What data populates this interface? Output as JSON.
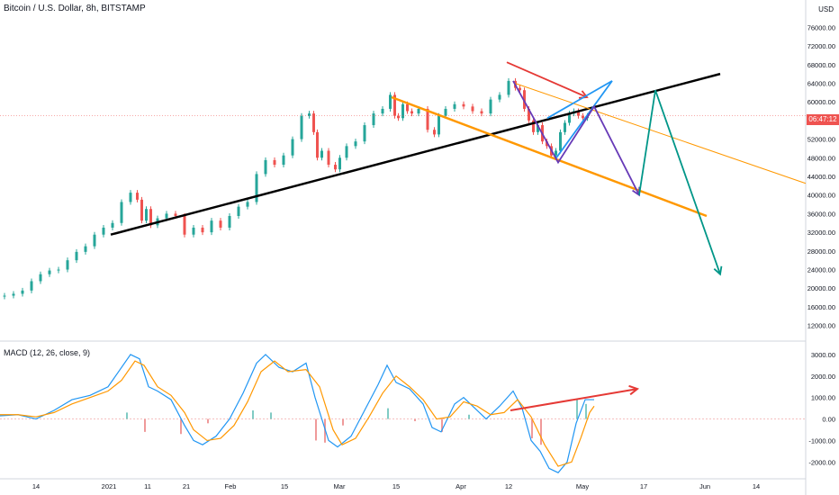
{
  "header": {
    "title": "Bitcoin / U.S. Dollar, 8h, BITSTAMP",
    "currency": "USD",
    "price_tag": "06:47:12"
  },
  "macd_header": {
    "label": "MACD (12, 26, close, 9)"
  },
  "chart_data": [
    {
      "type": "line",
      "title": "Bitcoin / U.S. Dollar, 8h, BITSTAMP",
      "xlabel": "",
      "ylabel": "USD",
      "x_ticks": [
        "14",
        "2021",
        "11",
        "21",
        "Feb",
        "15",
        "Mar",
        "15",
        "Apr",
        "12",
        "May",
        "17",
        "Jun",
        "14"
      ],
      "y_ticks": [
        "76000.00",
        "72000.00",
        "68000.00",
        "64000.00",
        "60000.00",
        "56000.00",
        "52000.00",
        "48000.00",
        "44000.00",
        "40000.00",
        "36000.00",
        "32000.00",
        "28000.00",
        "24000.00",
        "20000.00",
        "16000.00",
        "12000.00"
      ],
      "ylim": [
        10000,
        78000
      ],
      "colors": {
        "up": "#26a69a",
        "down": "#ef5350"
      },
      "price_series": {
        "name": "",
        "points": [
          [
            0,
            18200
          ],
          [
            10,
            18400
          ],
          [
            20,
            18800
          ],
          [
            30,
            19500
          ],
          [
            40,
            21500
          ],
          [
            50,
            23000
          ],
          [
            60,
            23800
          ],
          [
            70,
            24000
          ],
          [
            80,
            26000
          ],
          [
            90,
            27800
          ],
          [
            100,
            29000
          ],
          [
            110,
            31500
          ],
          [
            120,
            33000
          ],
          [
            130,
            34000
          ],
          [
            140,
            38500
          ],
          [
            150,
            40500
          ],
          [
            155,
            39000
          ],
          [
            160,
            34500
          ],
          [
            165,
            37000
          ],
          [
            170,
            33500
          ],
          [
            180,
            35000
          ],
          [
            190,
            36000
          ],
          [
            200,
            35500
          ],
          [
            210,
            31500
          ],
          [
            220,
            33000
          ],
          [
            230,
            32000
          ],
          [
            240,
            34500
          ],
          [
            250,
            33000
          ],
          [
            260,
            35500
          ],
          [
            270,
            37500
          ],
          [
            280,
            38500
          ],
          [
            290,
            44500
          ],
          [
            300,
            47500
          ],
          [
            310,
            46500
          ],
          [
            320,
            48500
          ],
          [
            330,
            52000
          ],
          [
            340,
            57000
          ],
          [
            347,
            57500
          ],
          [
            350,
            53500
          ],
          [
            355,
            48000
          ],
          [
            360,
            49500
          ],
          [
            370,
            46500
          ],
          [
            375,
            45500
          ],
          [
            380,
            48000
          ],
          [
            390,
            50500
          ],
          [
            400,
            51500
          ],
          [
            410,
            55000
          ],
          [
            420,
            57500
          ],
          [
            430,
            58500
          ],
          [
            437,
            61500
          ],
          [
            440,
            57000
          ],
          [
            445,
            56500
          ],
          [
            450,
            59500
          ],
          [
            455,
            58000
          ],
          [
            460,
            57500
          ],
          [
            470,
            58500
          ],
          [
            480,
            54000
          ],
          [
            485,
            53000
          ],
          [
            490,
            57000
          ],
          [
            500,
            58500
          ],
          [
            510,
            59500
          ],
          [
            520,
            59000
          ],
          [
            530,
            58000
          ],
          [
            540,
            57500
          ],
          [
            550,
            60500
          ],
          [
            560,
            61500
          ],
          [
            570,
            64500
          ],
          [
            575,
            63000
          ],
          [
            580,
            62500
          ],
          [
            585,
            58500
          ],
          [
            590,
            56000
          ],
          [
            595,
            53500
          ],
          [
            600,
            55000
          ],
          [
            605,
            51500
          ],
          [
            610,
            50500
          ],
          [
            615,
            48500
          ],
          [
            620,
            49500
          ],
          [
            625,
            53500
          ],
          [
            630,
            55500
          ],
          [
            635,
            57500
          ],
          [
            640,
            58000
          ],
          [
            645,
            57000
          ],
          [
            650,
            56500
          ],
          [
            655,
            57000
          ]
        ]
      },
      "annotations": [
        {
          "name": "black-trendline",
          "color": "#000000",
          "points": [
            [
              123,
              31500
            ],
            [
              800,
              66000
            ]
          ]
        },
        {
          "name": "orange-channel-lower",
          "color": "#ff9800",
          "points": [
            [
              435,
              61000
            ],
            [
              785,
              35500
            ]
          ]
        },
        {
          "name": "orange-channel-upper-thin",
          "color": "#ff9800",
          "points": [
            [
              572,
              64000
            ],
            [
              895,
              42500
            ]
          ]
        },
        {
          "name": "red-arrow-top",
          "color": "#e53935",
          "points": [
            [
              563,
              68500
            ],
            [
              652,
              61000
            ]
          ]
        },
        {
          "name": "blue-wedge-lower",
          "color": "#2196f3",
          "points": [
            [
              618,
              48000
            ],
            [
              680,
              64500
            ]
          ]
        },
        {
          "name": "blue-wedge-upper",
          "color": "#2196f3",
          "points": [
            [
              608,
              56500
            ],
            [
              680,
              64500
            ]
          ]
        },
        {
          "name": "purple-projection",
          "color": "#673ab7",
          "points": [
            [
              570,
              64500
            ],
            [
              620,
              47000
            ],
            [
              660,
              59000
            ],
            [
              710,
              40000
            ]
          ]
        },
        {
          "name": "teal-projection",
          "color": "#009688",
          "points": [
            [
              710,
              40000
            ],
            [
              728,
              62500
            ],
            [
              800,
              23000
            ]
          ]
        }
      ]
    },
    {
      "type": "line",
      "title": "MACD (12, 26, close, 9)",
      "y_ticks": [
        "3000.00",
        "2000.00",
        "1000.00",
        "0.00",
        "-1000.00",
        "-2000.00"
      ],
      "ylim": [
        -2700,
        3500
      ],
      "series": [
        {
          "name": "",
          "color": "#2196f3",
          "points": [
            [
              0,
              150
            ],
            [
              20,
              200
            ],
            [
              40,
              0
            ],
            [
              60,
              400
            ],
            [
              80,
              900
            ],
            [
              100,
              1100
            ],
            [
              120,
              1500
            ],
            [
              130,
              2100
            ],
            [
              145,
              3000
            ],
            [
              155,
              2800
            ],
            [
              165,
              1500
            ],
            [
              175,
              1300
            ],
            [
              190,
              900
            ],
            [
              205,
              -300
            ],
            [
              215,
              -1000
            ],
            [
              225,
              -1200
            ],
            [
              240,
              -800
            ],
            [
              255,
              0
            ],
            [
              270,
              1200
            ],
            [
              285,
              2600
            ],
            [
              295,
              3000
            ],
            [
              310,
              2400
            ],
            [
              325,
              2200
            ],
            [
              340,
              2600
            ],
            [
              350,
              1000
            ],
            [
              365,
              -1000
            ],
            [
              375,
              -1300
            ],
            [
              390,
              -800
            ],
            [
              405,
              400
            ],
            [
              420,
              1600
            ],
            [
              430,
              2500
            ],
            [
              440,
              1700
            ],
            [
              455,
              1400
            ],
            [
              470,
              700
            ],
            [
              480,
              -400
            ],
            [
              490,
              -600
            ],
            [
              505,
              700
            ],
            [
              515,
              1000
            ],
            [
              525,
              600
            ],
            [
              540,
              0
            ],
            [
              555,
              600
            ],
            [
              570,
              1300
            ],
            [
              580,
              500
            ],
            [
              590,
              -1000
            ],
            [
              600,
              -1500
            ],
            [
              610,
              -2300
            ],
            [
              620,
              -2500
            ],
            [
              630,
              -2000
            ],
            [
              640,
              -200
            ],
            [
              650,
              900
            ],
            [
              660,
              900
            ]
          ]
        },
        {
          "name": "",
          "color": "#ff9800",
          "points": [
            [
              0,
              200
            ],
            [
              20,
              200
            ],
            [
              40,
              100
            ],
            [
              60,
              300
            ],
            [
              80,
              700
            ],
            [
              100,
              1000
            ],
            [
              120,
              1300
            ],
            [
              135,
              1800
            ],
            [
              150,
              2700
            ],
            [
              160,
              2500
            ],
            [
              175,
              1500
            ],
            [
              190,
              1100
            ],
            [
              205,
              300
            ],
            [
              215,
              -500
            ],
            [
              230,
              -1000
            ],
            [
              245,
              -900
            ],
            [
              260,
              -300
            ],
            [
              275,
              800
            ],
            [
              290,
              2200
            ],
            [
              305,
              2700
            ],
            [
              320,
              2200
            ],
            [
              340,
              2300
            ],
            [
              355,
              1500
            ],
            [
              370,
              -500
            ],
            [
              380,
              -1200
            ],
            [
              395,
              -900
            ],
            [
              410,
              100
            ],
            [
              425,
              1200
            ],
            [
              440,
              2000
            ],
            [
              455,
              1500
            ],
            [
              470,
              900
            ],
            [
              485,
              0
            ],
            [
              500,
              100
            ],
            [
              515,
              800
            ],
            [
              530,
              600
            ],
            [
              545,
              200
            ],
            [
              560,
              300
            ],
            [
              575,
              900
            ],
            [
              590,
              100
            ],
            [
              605,
              -1200
            ],
            [
              620,
              -2200
            ],
            [
              635,
              -2000
            ],
            [
              645,
              -900
            ],
            [
              655,
              300
            ],
            [
              660,
              600
            ]
          ]
        }
      ],
      "histogram": [
        [
          140,
          300
        ],
        [
          160,
          -600
        ],
        [
          200,
          -700
        ],
        [
          230,
          -200
        ],
        [
          280,
          400
        ],
        [
          300,
          300
        ],
        [
          350,
          -1000
        ],
        [
          360,
          -1100
        ],
        [
          380,
          -300
        ],
        [
          430,
          500
        ],
        [
          460,
          -100
        ],
        [
          490,
          -600
        ],
        [
          520,
          200
        ],
        [
          590,
          -900
        ],
        [
          600,
          -1200
        ],
        [
          640,
          900
        ],
        [
          650,
          700
        ]
      ],
      "annotations": [
        {
          "name": "macd-red-divergence-arrow",
          "color": "#e53935",
          "points": [
            [
              567,
              400
            ],
            [
              708,
              1400
            ]
          ]
        }
      ]
    }
  ]
}
